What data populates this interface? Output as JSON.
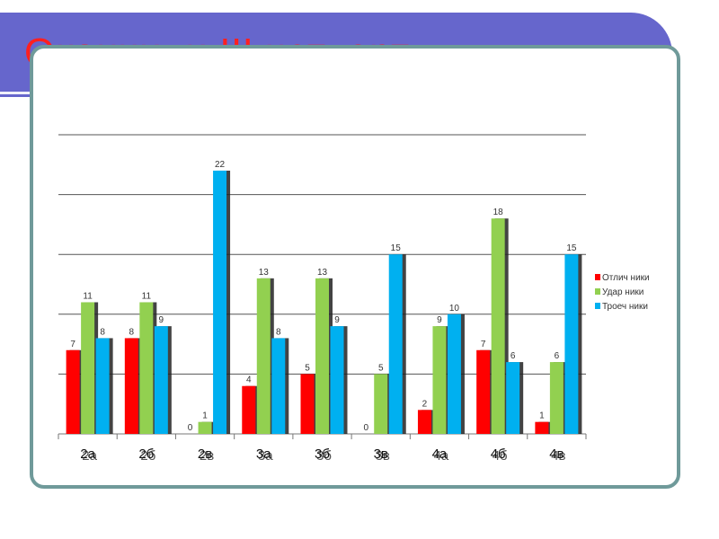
{
  "title": "Окончили III четверть",
  "chart_data": {
    "type": "bar",
    "categories": [
      "2а",
      "2б",
      "2в",
      "3а",
      "3б",
      "3в",
      "4а",
      "4б",
      "4в"
    ],
    "series": [
      {
        "name": "Отлич ники",
        "color": "#ff0000",
        "values": [
          7,
          8,
          0,
          4,
          5,
          0,
          2,
          7,
          1
        ]
      },
      {
        "name": "Удар ники",
        "color": "#92d050",
        "values": [
          11,
          11,
          1,
          13,
          13,
          5,
          9,
          18,
          6
        ]
      },
      {
        "name": "Троеч ники",
        "color": "#00b0f0",
        "values": [
          8,
          9,
          22,
          8,
          9,
          15,
          10,
          6,
          15
        ]
      }
    ],
    "ylim": [
      0,
      25
    ],
    "grid": true,
    "legend": "right",
    "xlabel": "",
    "ylabel": ""
  }
}
